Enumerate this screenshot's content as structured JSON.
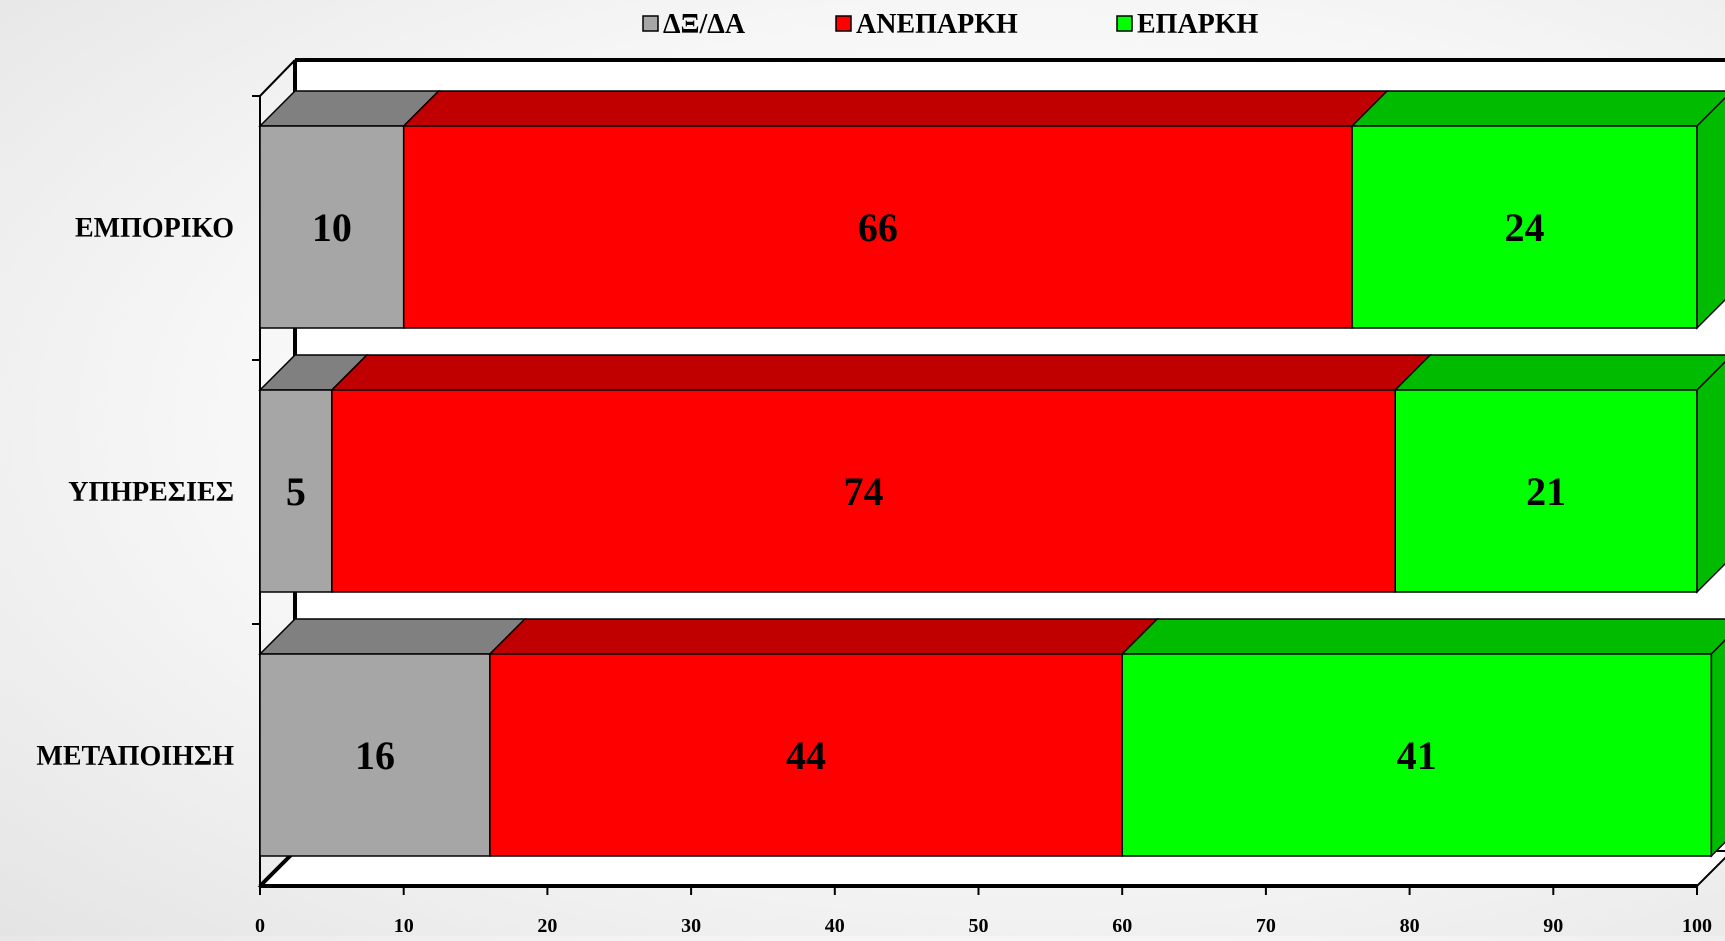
{
  "chart_data": {
    "type": "bar",
    "orientation": "horizontal",
    "stacked": true,
    "three_d": true,
    "categories": [
      "ΕΜΠΟΡΙΚΟ",
      "ΥΠΗΡΕΣΙΕΣ",
      "ΜΕΤΑΠΟΙΗΣΗ"
    ],
    "series": [
      {
        "name": "ΔΞ/ΔΑ",
        "values": [
          10,
          5,
          16
        ],
        "color": "#a6a6a6",
        "top_color": "#808080"
      },
      {
        "name": "ΑΝΕΠΑΡΚΗ",
        "values": [
          66,
          74,
          44
        ],
        "color": "#ff0000",
        "top_color": "#c00000"
      },
      {
        "name": "ΕΠΑΡΚΗ",
        "values": [
          24,
          21,
          41
        ],
        "color": "#00ff00",
        "top_color": "#00bb00"
      }
    ],
    "xlim": [
      0,
      100
    ],
    "xticks": [
      0,
      10,
      20,
      30,
      40,
      50,
      60,
      70,
      80,
      90,
      100
    ],
    "legend_position": "top",
    "grid": false,
    "title": "",
    "xlabel": "",
    "ylabel": ""
  }
}
